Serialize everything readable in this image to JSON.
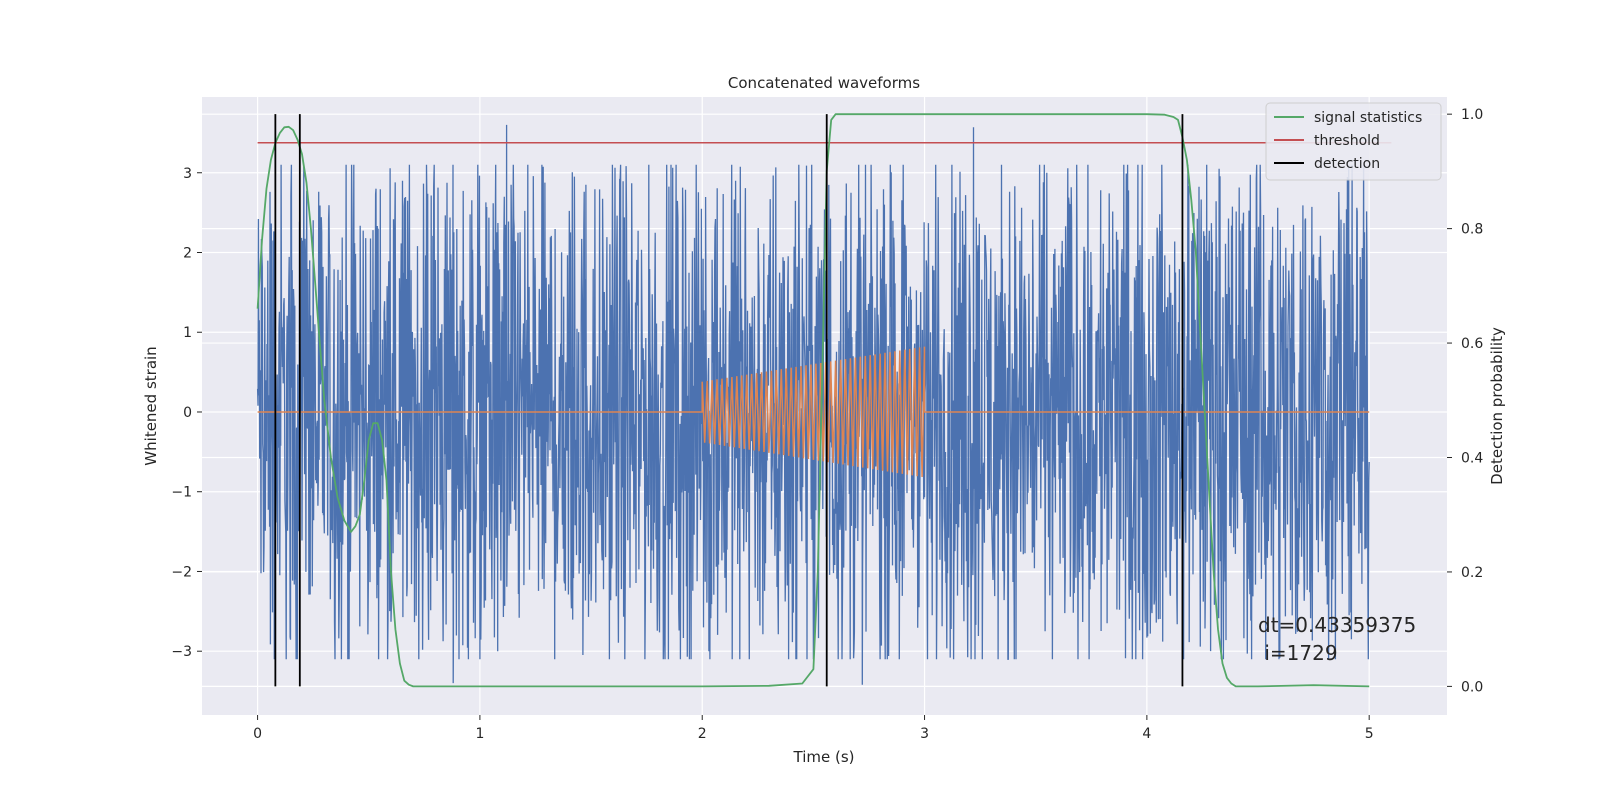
{
  "chart_data": {
    "type": "line",
    "title": "Concatenated waveforms",
    "xlabel": "Time (s)",
    "ylabel": "Whitened strain",
    "ylabel_right": "Detection probability",
    "xlim": [
      -0.25,
      5.35
    ],
    "ylim": [
      -3.8,
      3.95
    ],
    "ylim_right": [
      -0.05,
      1.03
    ],
    "x_ticks": [
      0,
      1,
      2,
      3,
      4,
      5
    ],
    "y_ticks": [
      -3,
      -2,
      -1,
      0,
      1,
      2,
      3
    ],
    "y_ticks_right": [
      0.0,
      0.2,
      0.4,
      0.6,
      0.8,
      1.0
    ],
    "x_tick_labels": [
      "0",
      "1",
      "2",
      "3",
      "4",
      "5"
    ],
    "y_tick_labels": [
      "−3",
      "−2",
      "−1",
      "0",
      "1",
      "2",
      "3"
    ],
    "y_tick_labels_right": [
      "0.0",
      "0.2",
      "0.4",
      "0.6",
      "0.8",
      "1.0"
    ],
    "grid": true,
    "legend_position": "top-right",
    "legend": [
      {
        "label": "signal statistics",
        "color": "#55a868"
      },
      {
        "label": "threshold",
        "color": "#c44e52"
      },
      {
        "label": "detection",
        "color": "#000000"
      }
    ],
    "series": [
      {
        "role": "noise",
        "color": "#4c72b0",
        "x_range": [
          0,
          5
        ],
        "envelope": [
          -2.5,
          2.5
        ],
        "peaks": [
          {
            "x": 1.12,
            "y": 3.6
          },
          {
            "x": 2.15,
            "y": 2.9
          },
          {
            "x": 3.22,
            "y": 3.57
          },
          {
            "x": 0.88,
            "y": -3.4
          },
          {
            "x": 2.72,
            "y": -3.42
          },
          {
            "x": 1.08,
            "y": -3.0
          },
          {
            "x": 2.03,
            "y": -3.0
          },
          {
            "x": 4.92,
            "y": -2.85
          }
        ]
      },
      {
        "role": "injected waveform",
        "color": "#dd8452",
        "segments": [
          {
            "x": [
              0,
              2
            ],
            "amplitude": 0
          },
          {
            "x": [
              2,
              3
            ],
            "amplitude_start": 0.38,
            "amplitude_end": 0.82,
            "cycles": 45
          },
          {
            "x": [
              3,
              5
            ],
            "amplitude": 0
          }
        ]
      },
      {
        "name": "signal statistics",
        "axis": "right",
        "color": "#55a868",
        "x": [
          0.0,
          0.02,
          0.04,
          0.06,
          0.08,
          0.1,
          0.12,
          0.14,
          0.16,
          0.18,
          0.2,
          0.22,
          0.24,
          0.26,
          0.28,
          0.3,
          0.33,
          0.36,
          0.39,
          0.42,
          0.44,
          0.46,
          0.48,
          0.5,
          0.52,
          0.54,
          0.56,
          0.58,
          0.6,
          0.62,
          0.64,
          0.66,
          0.68,
          0.7,
          0.75,
          0.8,
          1.0,
          1.5,
          2.0,
          2.3,
          2.45,
          2.5,
          2.52,
          2.54,
          2.56,
          2.58,
          2.6,
          2.65,
          2.7,
          3.0,
          3.5,
          4.0,
          4.08,
          4.12,
          4.14,
          4.16,
          4.18,
          4.2,
          4.22,
          4.24,
          4.26,
          4.28,
          4.3,
          4.32,
          4.34,
          4.36,
          4.38,
          4.4,
          4.5,
          4.75,
          5.0
        ],
        "values": [
          0.66,
          0.78,
          0.87,
          0.92,
          0.95,
          0.967,
          0.977,
          0.978,
          0.972,
          0.955,
          0.93,
          0.88,
          0.8,
          0.7,
          0.6,
          0.5,
          0.4,
          0.33,
          0.29,
          0.27,
          0.28,
          0.3,
          0.36,
          0.43,
          0.46,
          0.46,
          0.43,
          0.36,
          0.2,
          0.1,
          0.04,
          0.01,
          0.003,
          0.0,
          0.0,
          0.0,
          0.0,
          0.0,
          0.0,
          0.001,
          0.005,
          0.03,
          0.2,
          0.55,
          0.9,
          0.99,
          1.0,
          1.0,
          1.0,
          1.0,
          1.0,
          1.0,
          0.999,
          0.995,
          0.99,
          0.96,
          0.92,
          0.85,
          0.76,
          0.62,
          0.48,
          0.34,
          0.2,
          0.1,
          0.04,
          0.015,
          0.005,
          0.0,
          0.0,
          0.002,
          0.0
        ]
      },
      {
        "name": "threshold",
        "axis": "right",
        "color": "#c44e52",
        "x": [
          0,
          5.1
        ],
        "values": [
          0.95,
          0.95
        ]
      }
    ],
    "detections": [
      0.08,
      0.19,
      2.56,
      4.16
    ],
    "detection_range": [
      0.0,
      1.0
    ],
    "annotation": "dt=0.43359375\n i=1729"
  }
}
